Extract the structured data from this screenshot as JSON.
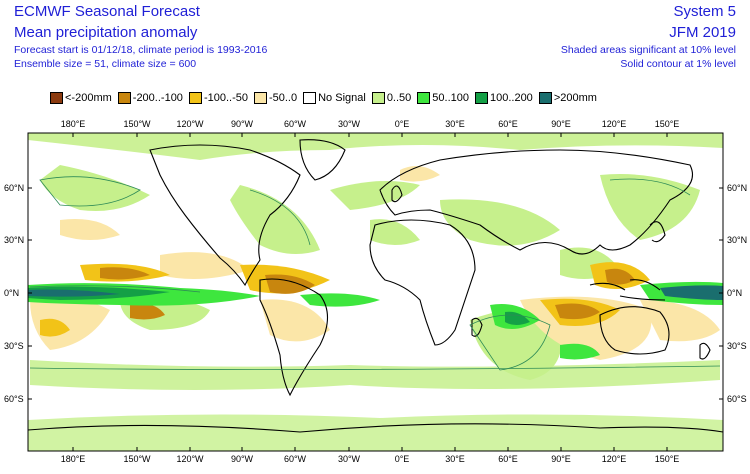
{
  "header": {
    "left_title": "ECMWF Seasonal Forecast",
    "left_subtitle": "Mean precipitation anomaly",
    "left_line1": "Forecast start is 01/12/18, climate period is 1993-2016",
    "left_line2": "Ensemble size = 51, climate size = 600",
    "right_title": "System 5",
    "right_subtitle": "JFM 2019",
    "right_line1": "Shaded areas significant at 10% level",
    "right_line2": "Solid contour at 1% level"
  },
  "legend": [
    {
      "label": "<-200mm",
      "color": "#8b3a0f"
    },
    {
      "label": "-200..-100",
      "color": "#c8860e"
    },
    {
      "label": "-100..-50",
      "color": "#f2c318"
    },
    {
      "label": "-50..0",
      "color": "#fbe6a8"
    },
    {
      "label": "No Signal",
      "color": "#ffffff"
    },
    {
      "label": "0..50",
      "color": "#c6f08c"
    },
    {
      "label": "50..100",
      "color": "#3ee63e"
    },
    {
      "label": "100..200",
      "color": "#14a046"
    },
    {
      "label": ">200mm",
      "color": "#1a6e6e"
    }
  ],
  "map": {
    "lon_labels": [
      "180°E",
      "150°W",
      "120°W",
      "90°W",
      "60°W",
      "30°W",
      "0°E",
      "30°E",
      "60°E",
      "90°E",
      "120°E",
      "150°E"
    ],
    "lat_labels": [
      "60°N",
      "30°N",
      "0°N",
      "30°S",
      "60°S"
    ],
    "colors": {
      "ocean_bg": "#ffffff",
      "coast": "#000000",
      "contour": "#2e8b57"
    }
  }
}
